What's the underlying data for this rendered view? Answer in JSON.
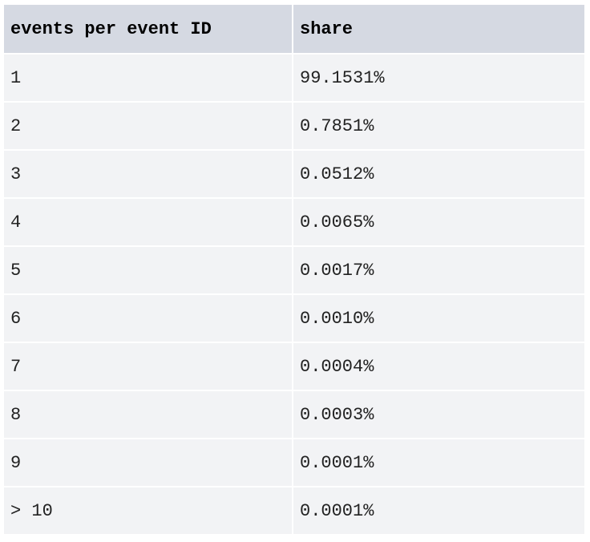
{
  "table": {
    "headers": [
      "events per event ID",
      "share"
    ],
    "rows": [
      [
        "1",
        "99.1531%"
      ],
      [
        "2",
        "0.7851%"
      ],
      [
        "3",
        "0.0512%"
      ],
      [
        "4",
        "0.0065%"
      ],
      [
        "5",
        "0.0017%"
      ],
      [
        "6",
        "0.0010%"
      ],
      [
        "7",
        "0.0004%"
      ],
      [
        "8",
        "0.0003%"
      ],
      [
        "9",
        "0.0001%"
      ],
      [
        "> 10",
        "0.0001%"
      ]
    ]
  },
  "colors": {
    "header_bg": "#d5d9e2",
    "row_bg": "#f2f3f5",
    "divider": "#ffffff"
  }
}
